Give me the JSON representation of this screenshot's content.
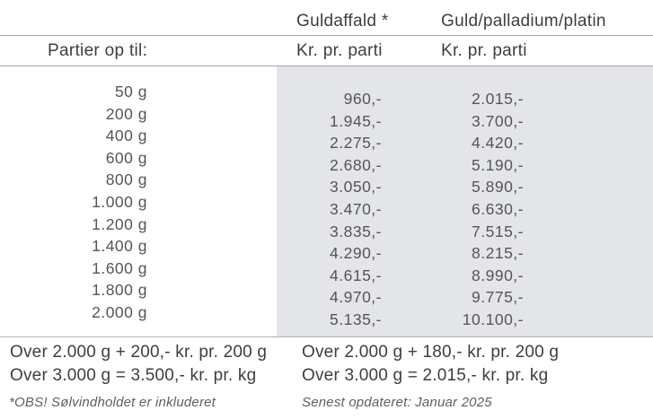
{
  "header": {
    "weights_label": "Partier op til:",
    "columns": [
      {
        "title": "Guldaffald *",
        "unit": "Kr. pr. parti"
      },
      {
        "title": "Guld/palladium/platin",
        "unit": "Kr. pr. parti"
      }
    ]
  },
  "rows": [
    {
      "weight": "50 g",
      "guldaffald": "960,-",
      "guld_palladium_platin": "2.015,-"
    },
    {
      "weight": "200 g",
      "guldaffald": "1.945,-",
      "guld_palladium_platin": "3.700,-"
    },
    {
      "weight": "400 g",
      "guldaffald": "2.275,-",
      "guld_palladium_platin": "4.420,-"
    },
    {
      "weight": "600 g",
      "guldaffald": "2.680,-",
      "guld_palladium_platin": "5.190,-"
    },
    {
      "weight": "800 g",
      "guldaffald": "3.050,-",
      "guld_palladium_platin": "5.890,-"
    },
    {
      "weight": "1.000 g",
      "guldaffald": "3.470,-",
      "guld_palladium_platin": "6.630,-"
    },
    {
      "weight": "1.200 g",
      "guldaffald": "3.835,-",
      "guld_palladium_platin": "7.515,-"
    },
    {
      "weight": "1.400 g",
      "guldaffald": "4.290,-",
      "guld_palladium_platin": "8.215,-"
    },
    {
      "weight": "1.600 g",
      "guldaffald": "4.615,-",
      "guld_palladium_platin": "8.990,-"
    },
    {
      "weight": "1.800 g",
      "guldaffald": "4.970,-",
      "guld_palladium_platin": "9.775,-"
    },
    {
      "weight": "2.000 g",
      "guldaffald": "5.135,-",
      "guld_palladium_platin": "10.100,-"
    }
  ],
  "footer": {
    "guldaffald_over_2000": "Over 2.000 g + 200,- kr. pr. 200 g",
    "guldaffald_over_3000": "Over 3.000 g = 3.500,- kr. pr. kg",
    "gpp_over_2000": "Over 2.000 g + 180,- kr. pr. 200 g",
    "gpp_over_3000": "Over 3.000 g = 2.015,- kr. pr. kg",
    "note_left": "*OBS! Sølvindholdet er inkluderet",
    "note_right": "Senest opdateret: Januar 2025"
  },
  "colors": {
    "panel_bg": "#e3e5e8",
    "text": "#3e3e41",
    "line": "#a6a6a6",
    "note": "#5f5f63"
  }
}
